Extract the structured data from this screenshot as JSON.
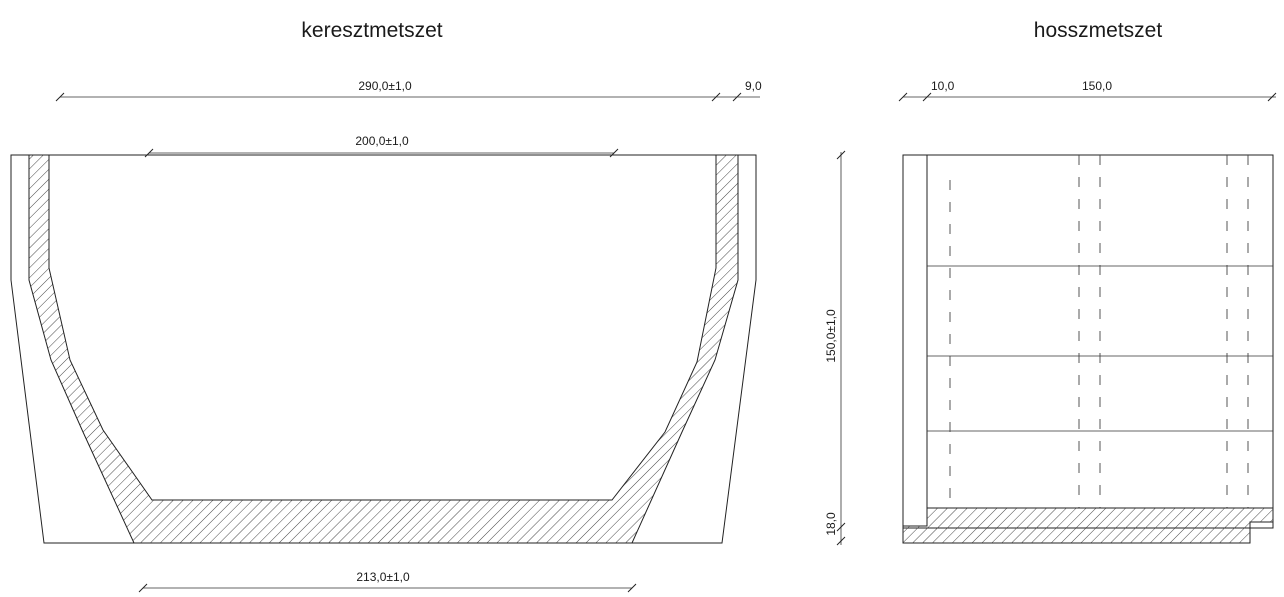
{
  "titles": {
    "cross_section": "keresztmetszet",
    "long_section": "hosszmetszet"
  },
  "dimensions": {
    "cross_top_width": "290,0±1,0",
    "cross_wall": "9,0",
    "cross_inner_width": "200,0±1,0",
    "cross_bottom_width": "213,0±1,0",
    "long_end_wall": "10,0",
    "long_length": "150,0",
    "long_height": "150,0±1,0",
    "long_floor": "18,0"
  },
  "colors": {
    "line": "#222222",
    "hatch": "#333333"
  }
}
